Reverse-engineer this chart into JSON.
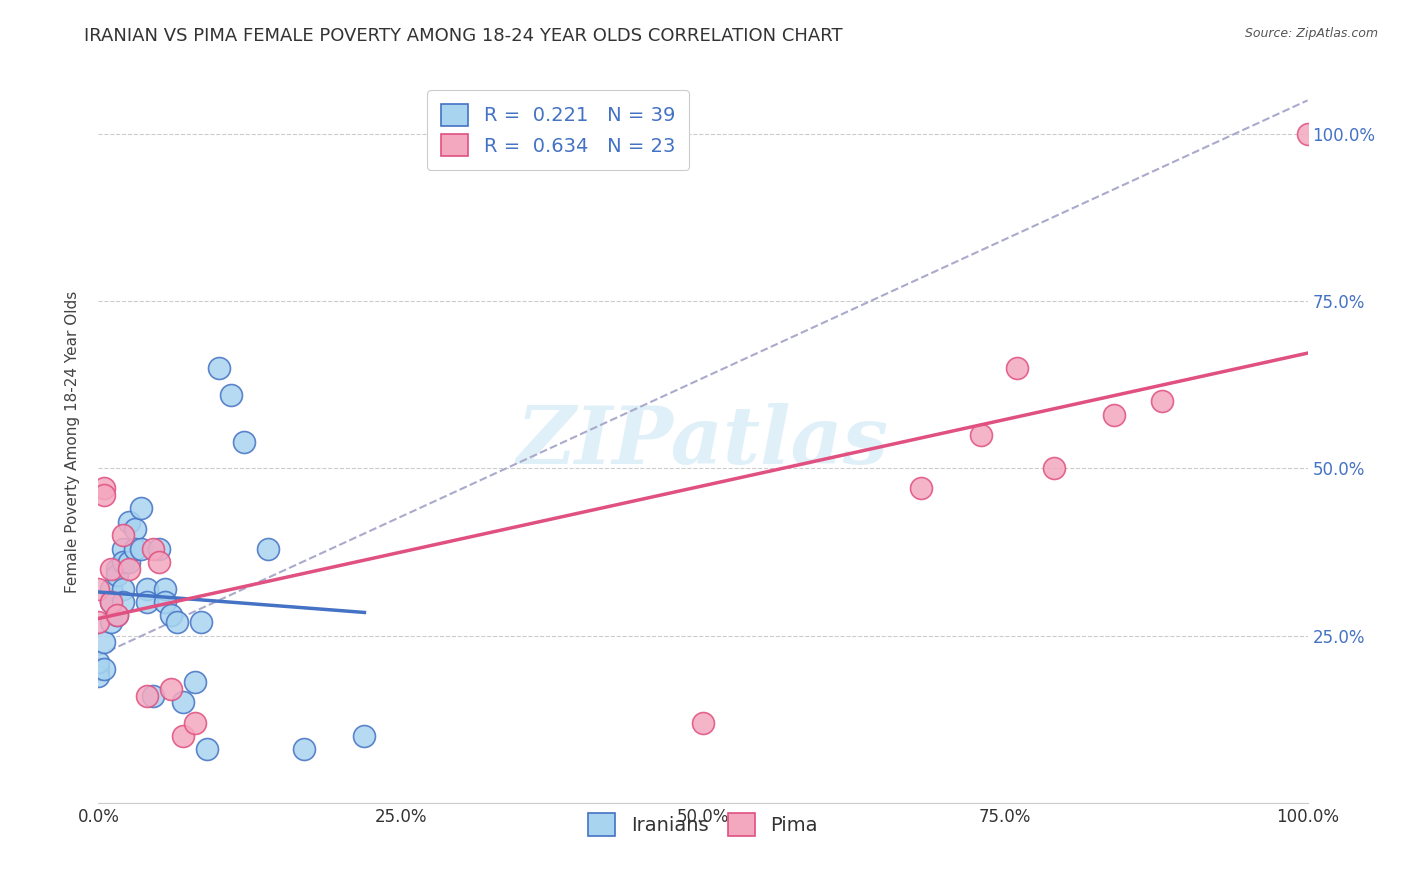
{
  "title": "IRANIAN VS PIMA FEMALE POVERTY AMONG 18-24 YEAR OLDS CORRELATION CHART",
  "source": "Source: ZipAtlas.com",
  "ylabel": "Female Poverty Among 18-24 Year Olds",
  "watermark": "ZIPatlas",
  "iranians_x": [
    0.0,
    0.0,
    0.0,
    0.005,
    0.005,
    0.01,
    0.01,
    0.01,
    0.015,
    0.015,
    0.015,
    0.02,
    0.02,
    0.02,
    0.02,
    0.025,
    0.025,
    0.03,
    0.03,
    0.035,
    0.035,
    0.04,
    0.04,
    0.045,
    0.05,
    0.055,
    0.055,
    0.06,
    0.065,
    0.07,
    0.08,
    0.085,
    0.09,
    0.1,
    0.11,
    0.12,
    0.14,
    0.17,
    0.22
  ],
  "iranians_y": [
    0.2,
    0.19,
    0.21,
    0.24,
    0.2,
    0.32,
    0.3,
    0.27,
    0.35,
    0.34,
    0.28,
    0.38,
    0.36,
    0.32,
    0.3,
    0.42,
    0.36,
    0.41,
    0.38,
    0.44,
    0.38,
    0.32,
    0.3,
    0.16,
    0.38,
    0.32,
    0.3,
    0.28,
    0.27,
    0.15,
    0.18,
    0.27,
    0.08,
    0.65,
    0.61,
    0.54,
    0.38,
    0.08,
    0.1
  ],
  "pima_x": [
    0.0,
    0.0,
    0.005,
    0.005,
    0.01,
    0.01,
    0.015,
    0.02,
    0.025,
    0.04,
    0.045,
    0.05,
    0.06,
    0.07,
    0.08,
    0.5,
    0.68,
    0.73,
    0.76,
    0.79,
    0.84,
    0.88,
    1.0
  ],
  "pima_y": [
    0.27,
    0.32,
    0.47,
    0.46,
    0.35,
    0.3,
    0.28,
    0.4,
    0.35,
    0.16,
    0.38,
    0.36,
    0.17,
    0.1,
    0.12,
    0.12,
    0.47,
    0.55,
    0.65,
    0.5,
    0.58,
    0.6,
    1.0
  ],
  "R_iranians": 0.221,
  "N_iranians": 39,
  "R_pima": 0.634,
  "N_pima": 23,
  "iranians_color": "#a8d4f0",
  "pima_color": "#f4a8c0",
  "iranians_line_color": "#4472c4",
  "pima_line_color": "#e05080",
  "dashed_line_color": "#aaaacc",
  "xlim": [
    0.0,
    1.0
  ],
  "ylim": [
    0.0,
    1.08
  ],
  "xticks": [
    0.0,
    0.25,
    0.5,
    0.75,
    1.0
  ],
  "xtick_labels": [
    "0.0%",
    "25.0%",
    "50.0%",
    "75.0%",
    "100.0%"
  ],
  "yticks": [
    0.0,
    0.25,
    0.5,
    0.75,
    1.0
  ],
  "ytick_labels_right": [
    "",
    "25.0%",
    "50.0%",
    "75.0%",
    "100.0%"
  ],
  "title_fontsize": 13,
  "label_fontsize": 11,
  "tick_fontsize": 12,
  "legend_fontsize": 14
}
